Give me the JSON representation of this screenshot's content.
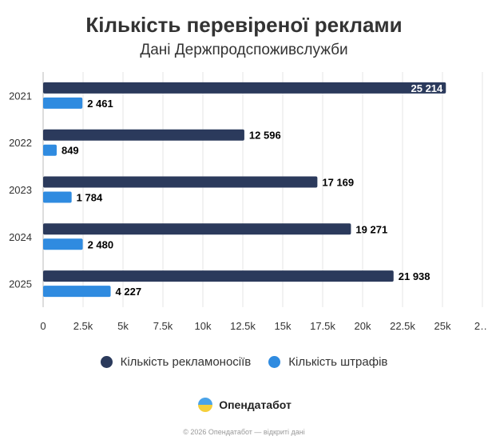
{
  "title": "Кількість перевіреної реклами",
  "subtitle": "Дані Держпродспоживслужби",
  "chart_data": {
    "type": "bar",
    "orientation": "horizontal",
    "categories": [
      "2021",
      "2022",
      "2023",
      "2024",
      "2025"
    ],
    "series": [
      {
        "name": "Кількість рекламоносіїв",
        "color": "#2b3a5c",
        "values": [
          25214,
          12596,
          17169,
          19271,
          21938
        ],
        "labels": [
          "25 214",
          "12 596",
          "17 169",
          "19 271",
          "21 938"
        ]
      },
      {
        "name": "Кількість штрафів",
        "color": "#2f8be0",
        "values": [
          2461,
          849,
          1784,
          2480,
          4227
        ],
        "labels": [
          "2 461",
          "849",
          "1 784",
          "2 480",
          "4 227"
        ]
      }
    ],
    "xlim": [
      0,
      27500
    ],
    "xticks": [
      "0",
      "2.5k",
      "5k",
      "7.5k",
      "10k",
      "12.5k",
      "15k",
      "17.5k",
      "20k",
      "22.5k",
      "25k",
      "2…"
    ],
    "grid": true,
    "legend": "bottom"
  },
  "brand": {
    "name": "Опендатабот"
  },
  "footer": "© 2026 Опендатабот — відкриті дані"
}
